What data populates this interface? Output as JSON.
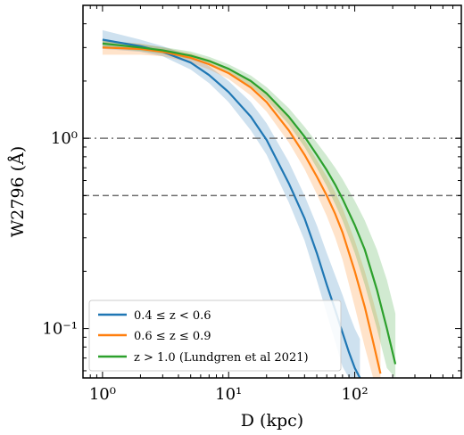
{
  "chart_data": {
    "type": "line",
    "title": "",
    "xlabel": "D (kpc)",
    "ylabel": "W2796 (Å)",
    "xscale": "log",
    "yscale": "log",
    "xlim": [
      0.7,
      700
    ],
    "ylim": [
      0.055,
      5.0
    ],
    "grid": false,
    "legend_position": "lower-left",
    "x_ticks": [
      {
        "value": 1,
        "label": "10⁰"
      },
      {
        "value": 10,
        "label": "10¹"
      },
      {
        "value": 100,
        "label": "10²"
      }
    ],
    "y_ticks": [
      {
        "value": 0.1,
        "label": "10⁻¹"
      },
      {
        "value": 1.0,
        "label": "10⁰"
      }
    ],
    "reference_lines": [
      {
        "orientation": "horizontal",
        "y": 1.0,
        "style": "dashdot",
        "color": "#707070"
      },
      {
        "orientation": "horizontal",
        "y": 0.5,
        "style": "dashed",
        "color": "#707070"
      }
    ],
    "series": [
      {
        "name": "0.4 ≤ z < 0.6",
        "color": "#1f77b4",
        "x": [
          1,
          2,
          3,
          5,
          7,
          10,
          15,
          20,
          30,
          40,
          50,
          60,
          70,
          80,
          90,
          100,
          110
        ],
        "y": [
          3.3,
          3.05,
          2.85,
          2.5,
          2.15,
          1.75,
          1.3,
          0.98,
          0.58,
          0.38,
          0.25,
          0.17,
          0.125,
          0.095,
          0.075,
          0.062,
          0.055
        ],
        "band_lower": [
          2.95,
          2.85,
          2.7,
          2.3,
          1.95,
          1.55,
          1.1,
          0.82,
          0.46,
          0.29,
          0.18,
          0.12,
          0.085,
          0.063,
          0.055,
          0.055,
          0.055
        ],
        "band_upper": [
          3.7,
          3.3,
          3.05,
          2.7,
          2.4,
          2.0,
          1.55,
          1.2,
          0.75,
          0.5,
          0.35,
          0.25,
          0.19,
          0.15,
          0.12,
          0.1,
          0.088
        ]
      },
      {
        "name": "0.6 ≤ z ≤ 0.9",
        "color": "#ff7f0e",
        "x": [
          1,
          2,
          3,
          5,
          7,
          10,
          15,
          20,
          30,
          40,
          50,
          60,
          70,
          80,
          100,
          120,
          140,
          160
        ],
        "y": [
          3.0,
          2.95,
          2.85,
          2.65,
          2.45,
          2.2,
          1.85,
          1.55,
          1.1,
          0.82,
          0.63,
          0.5,
          0.4,
          0.32,
          0.2,
          0.13,
          0.085,
          0.058
        ],
        "band_lower": [
          2.75,
          2.75,
          2.7,
          2.5,
          2.3,
          2.05,
          1.68,
          1.38,
          0.95,
          0.69,
          0.51,
          0.39,
          0.3,
          0.23,
          0.13,
          0.08,
          0.055,
          0.055
        ],
        "band_upper": [
          3.25,
          3.15,
          3.0,
          2.8,
          2.6,
          2.35,
          2.02,
          1.75,
          1.28,
          0.98,
          0.77,
          0.63,
          0.52,
          0.43,
          0.29,
          0.2,
          0.14,
          0.1
        ]
      },
      {
        "name": "z > 1.0 (Lundgren et al 2021)",
        "color": "#2ca02c",
        "x": [
          1,
          2,
          3,
          5,
          7,
          10,
          15,
          20,
          30,
          40,
          50,
          60,
          70,
          80,
          100,
          120,
          150,
          180,
          210
        ],
        "y": [
          3.15,
          3.0,
          2.9,
          2.72,
          2.55,
          2.32,
          2.0,
          1.72,
          1.3,
          1.02,
          0.82,
          0.68,
          0.57,
          0.48,
          0.35,
          0.26,
          0.16,
          0.1,
          0.065
        ],
        "band_lower": [
          3.0,
          2.88,
          2.78,
          2.6,
          2.44,
          2.2,
          1.88,
          1.6,
          1.18,
          0.9,
          0.7,
          0.56,
          0.45,
          0.37,
          0.25,
          0.17,
          0.1,
          0.062,
          0.055
        ],
        "band_upper": [
          3.3,
          3.12,
          3.02,
          2.86,
          2.68,
          2.45,
          2.14,
          1.86,
          1.44,
          1.15,
          0.95,
          0.81,
          0.7,
          0.61,
          0.47,
          0.37,
          0.26,
          0.18,
          0.12
        ]
      }
    ]
  }
}
